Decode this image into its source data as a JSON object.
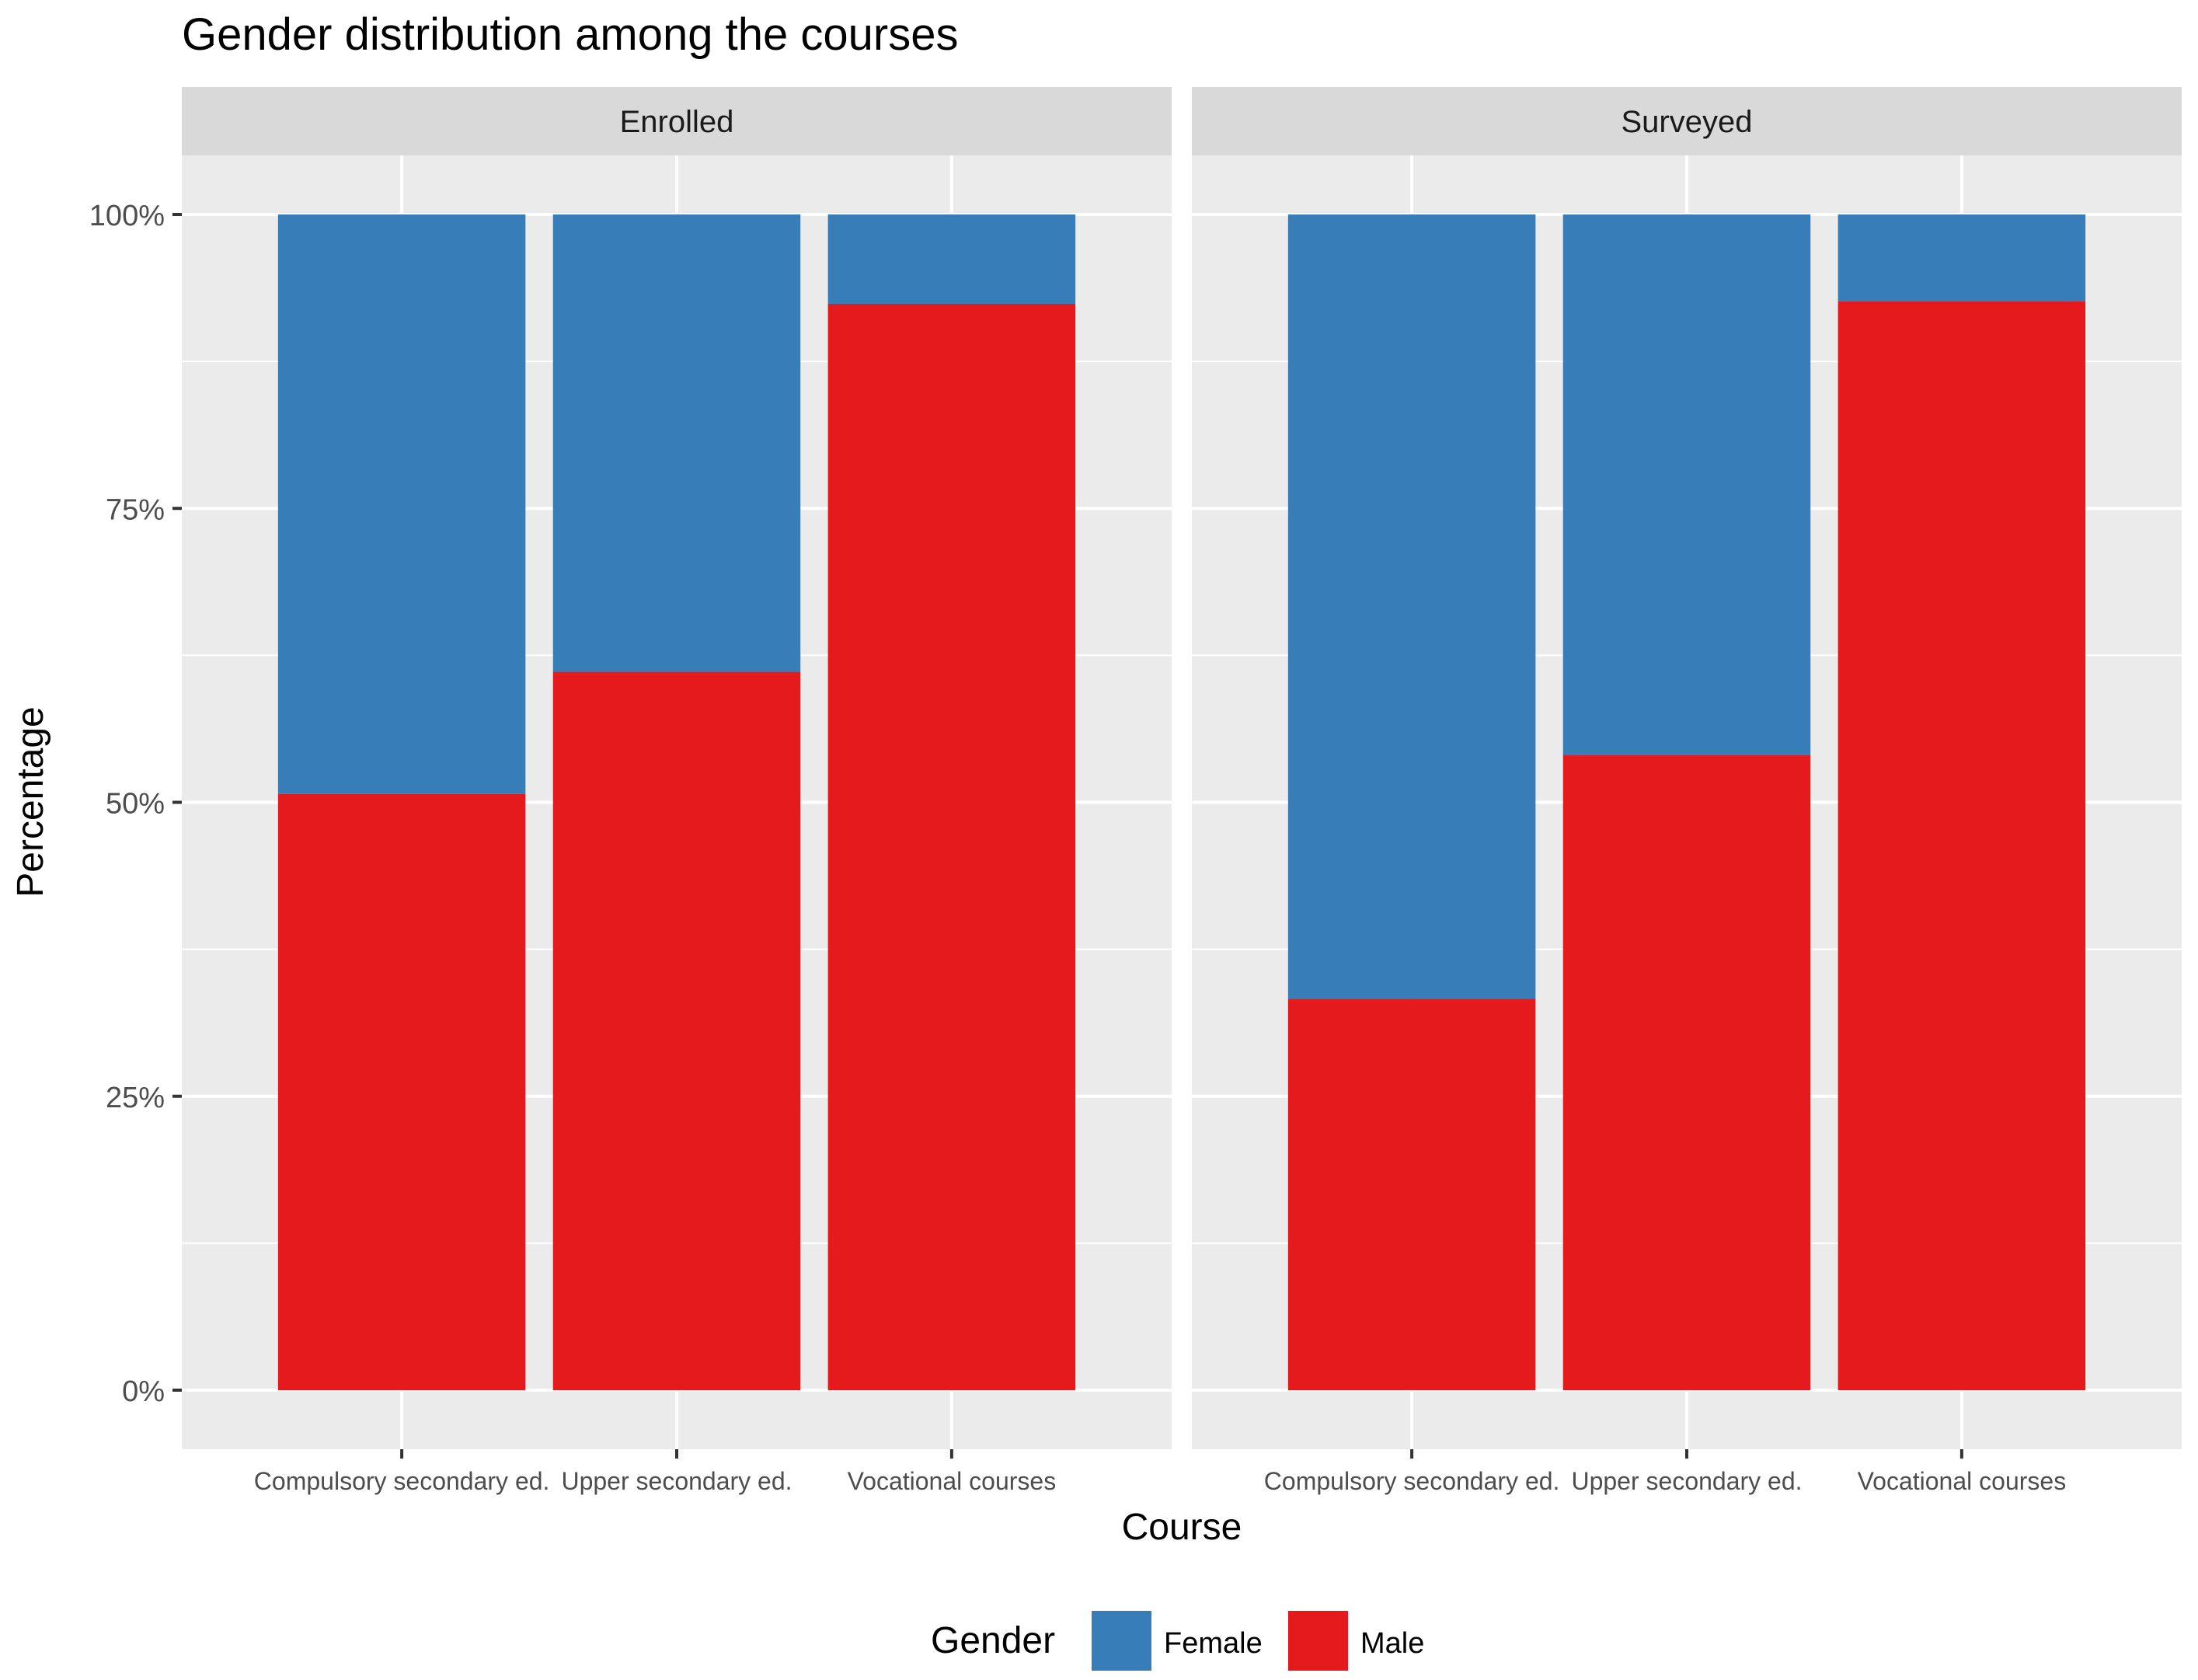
{
  "chart_data": {
    "type": "bar",
    "stacked": true,
    "title": "Gender distribution among the courses",
    "xlabel": "Course",
    "ylabel": "Percentage",
    "ylim": [
      0,
      100
    ],
    "yticks": [
      0,
      25,
      50,
      75,
      100
    ],
    "ytick_labels": [
      "0%",
      "25%",
      "50%",
      "75%",
      "100%"
    ],
    "categories": [
      "Compulsory secondary ed.",
      "Upper secondary ed.",
      "Vocational courses"
    ],
    "facets": [
      {
        "name": "Enrolled",
        "series": [
          {
            "name": "Female",
            "values": [
              49.3,
              38.9,
              7.6
            ]
          },
          {
            "name": "Male",
            "values": [
              50.7,
              61.1,
              92.4
            ]
          }
        ]
      },
      {
        "name": "Surveyed",
        "series": [
          {
            "name": "Female",
            "values": [
              66.7,
              46.0,
              7.4
            ]
          },
          {
            "name": "Male",
            "values": [
              33.3,
              54.0,
              92.6
            ]
          }
        ]
      }
    ],
    "legend": {
      "title": "Gender",
      "position": "bottom",
      "entries": [
        "Female",
        "Male"
      ]
    },
    "colors": {
      "Female": "#377EB8",
      "Male": "#E41A1C",
      "panel": "#EBEBEB",
      "strip": "#D9D9D9",
      "grid": "#FFFFFF",
      "text": "#000000",
      "axis_text": "#4D4D4D",
      "tick": "#333333"
    }
  }
}
